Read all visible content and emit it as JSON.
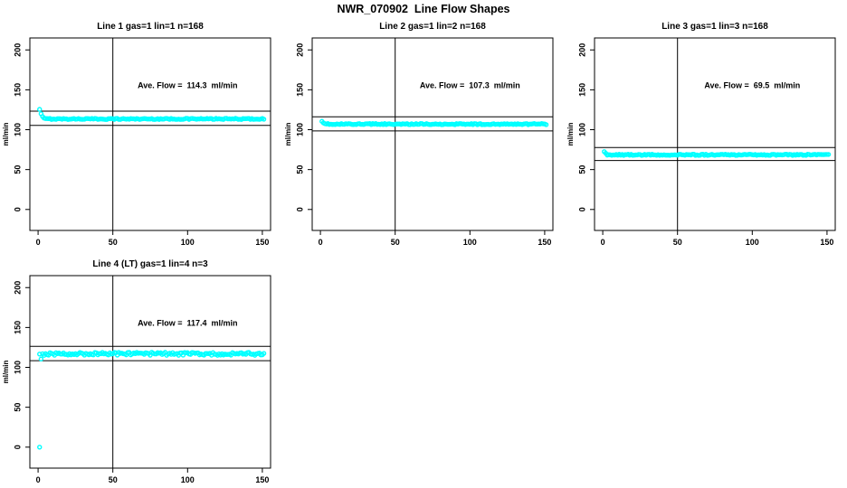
{
  "figure": {
    "title": "NWR_070902  Line Flow Shapes",
    "background_color": "#FFFFFF",
    "point_color": "#00FFFF",
    "axis_color": "#000000"
  },
  "chart_data": [
    {
      "type": "scatter",
      "title": "Line 1 gas=1 lin=1 n=168",
      "annotation": "Ave. Flow =  114.3  ml/min",
      "ave_flow_ml_min": 114.3,
      "n": 168,
      "ylabel": "ml/min",
      "x_ticks": [
        0,
        50,
        100,
        150
      ],
      "y_ticks": [
        0,
        50,
        100,
        150,
        200
      ],
      "x_range": [
        -5.5,
        155.5
      ],
      "y_range": [
        -26.3,
        215
      ],
      "vline_x": 50,
      "hlines": [
        123.2,
        105.4
      ],
      "annotation_xy": [
        100,
        152
      ],
      "series": {
        "x_start": 1,
        "x_end": 151,
        "x_step": 1,
        "flat_value": 113.5,
        "noise_amplitude": 0.7,
        "initial_points": [
          [
            1,
            125.5
          ],
          [
            2,
            120.0
          ],
          [
            3,
            116.5
          ],
          [
            4,
            114.5
          ]
        ],
        "outliers": []
      }
    },
    {
      "type": "scatter",
      "title": "Line 2 gas=1 lin=2 n=168",
      "annotation": "Ave. Flow =  107.3  ml/min",
      "ave_flow_ml_min": 107.3,
      "n": 168,
      "ylabel": "ml/min",
      "x_ticks": [
        0,
        50,
        100,
        150
      ],
      "y_ticks": [
        0,
        50,
        100,
        150,
        200
      ],
      "x_range": [
        -5.5,
        155.5
      ],
      "y_range": [
        -26.3,
        215
      ],
      "vline_x": 50,
      "hlines": [
        116.1,
        98.5
      ],
      "annotation_xy": [
        100,
        152
      ],
      "series": {
        "x_start": 1,
        "x_end": 151,
        "x_step": 1,
        "flat_value": 107.0,
        "noise_amplitude": 0.7,
        "initial_points": [
          [
            1,
            110.5
          ],
          [
            2,
            108.5
          ]
        ],
        "outliers": []
      }
    },
    {
      "type": "scatter",
      "title": "Line 3 gas=1 lin=3 n=168",
      "annotation": "Ave. Flow =  69.5  ml/min",
      "ave_flow_ml_min": 69.5,
      "n": 168,
      "ylabel": "ml/min",
      "x_ticks": [
        0,
        50,
        100,
        150
      ],
      "y_ticks": [
        0,
        50,
        100,
        150,
        200
      ],
      "x_range": [
        -5.5,
        155.5
      ],
      "y_range": [
        -26.3,
        215
      ],
      "vline_x": 50,
      "hlines": [
        77.6,
        61.4
      ],
      "annotation_xy": [
        100,
        152
      ],
      "series": {
        "x_start": 1,
        "x_end": 151,
        "x_step": 1,
        "flat_value": 68.5,
        "noise_amplitude": 0.7,
        "initial_points": [
          [
            1,
            72.5
          ],
          [
            2,
            70.5
          ]
        ],
        "outliers": []
      }
    },
    {
      "type": "scatter",
      "title": "Line 4 (LT) gas=1 lin=4 n=3",
      "annotation": "Ave. Flow =  117.4  ml/min",
      "ave_flow_ml_min": 117.4,
      "n": 3,
      "ylabel": "ml/min",
      "x_ticks": [
        0,
        50,
        100,
        150
      ],
      "y_ticks": [
        0,
        50,
        100,
        150,
        200
      ],
      "x_range": [
        -5.5,
        155.5
      ],
      "y_range": [
        -26.3,
        215
      ],
      "vline_x": 50,
      "hlines": [
        126.3,
        108.4
      ],
      "annotation_xy": [
        100,
        152
      ],
      "series": {
        "x_start": 1,
        "x_end": 151,
        "x_step": 1,
        "flat_value": 117.0,
        "noise_amplitude": 2.0,
        "initial_points": [
          [
            2,
            110.5
          ]
        ],
        "outliers": [
          [
            1,
            0
          ]
        ]
      }
    }
  ]
}
